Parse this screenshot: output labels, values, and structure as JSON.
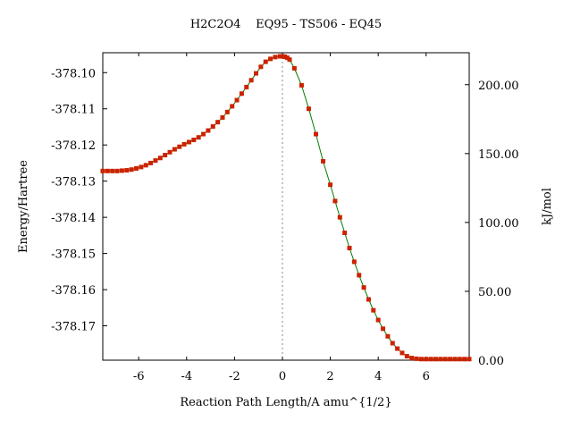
{
  "chart_data": {
    "type": "line",
    "title": "H2C2O4    EQ95 - TS506 - EQ45",
    "xlabel": "Reaction Path Length/A amu^{1/2}",
    "ylabel": "Energy/Hartree",
    "y2label": "kJ/mol",
    "xlim": [
      -7.5,
      7.8
    ],
    "ylim": [
      -378.1795,
      -378.0945
    ],
    "y2lim": [
      0,
      223.2
    ],
    "x_ticks": [
      -6,
      -4,
      -2,
      0,
      2,
      4,
      6
    ],
    "x_tick_labels": [
      "-6",
      "-4",
      "-2",
      "0",
      "2",
      "4",
      "6"
    ],
    "y_ticks": [
      -378.1,
      -378.11,
      -378.12,
      -378.13,
      -378.14,
      -378.15,
      -378.16,
      -378.17
    ],
    "y_tick_labels": [
      "-378.10",
      "-378.11",
      "-378.12",
      "-378.13",
      "-378.14",
      "-378.15",
      "-378.16",
      "-378.17"
    ],
    "y2_ticks": [
      0,
      50,
      100,
      150,
      200
    ],
    "y2_tick_labels": [
      "0.00",
      "50.00",
      "100.00",
      "150.00",
      "200.00"
    ],
    "ts_x": 0,
    "line_color": "#008000",
    "marker_color": "#cc2200",
    "guide_color": "#888888",
    "grid": false,
    "x": [
      -7.5,
      -7.3,
      -7.1,
      -6.9,
      -6.7,
      -6.5,
      -6.3,
      -6.1,
      -5.9,
      -5.7,
      -5.5,
      -5.3,
      -5.1,
      -4.9,
      -4.7,
      -4.5,
      -4.3,
      -4.1,
      -3.9,
      -3.7,
      -3.5,
      -3.3,
      -3.1,
      -2.9,
      -2.7,
      -2.5,
      -2.3,
      -2.1,
      -1.9,
      -1.7,
      -1.5,
      -1.3,
      -1.1,
      -0.9,
      -0.7,
      -0.5,
      -0.3,
      -0.1,
      0.0,
      0.1,
      0.2,
      0.3,
      0.5,
      0.8,
      1.1,
      1.4,
      1.7,
      2.0,
      2.2,
      2.4,
      2.6,
      2.8,
      3.0,
      3.2,
      3.4,
      3.6,
      3.8,
      4.0,
      4.2,
      4.4,
      4.6,
      4.8,
      5.0,
      5.2,
      5.4,
      5.6,
      5.8,
      6.0,
      6.2,
      6.4,
      6.6,
      6.8,
      7.0,
      7.2,
      7.4,
      7.6,
      7.8
    ],
    "y": [
      -378.1272,
      -378.1272,
      -378.1272,
      -378.1272,
      -378.1271,
      -378.127,
      -378.1268,
      -378.1265,
      -378.1261,
      -378.1256,
      -378.125,
      -378.1243,
      -378.1236,
      -378.1228,
      -378.122,
      -378.1212,
      -378.1205,
      -378.1198,
      -378.1192,
      -378.1186,
      -378.1179,
      -378.117,
      -378.116,
      -378.1149,
      -378.1137,
      -378.1124,
      -378.1109,
      -378.1093,
      -378.1076,
      -378.1058,
      -378.104,
      -378.1021,
      -378.1002,
      -378.0984,
      -378.097,
      -378.0962,
      -378.0957,
      -378.0955,
      -378.0955,
      -378.0956,
      -378.0959,
      -378.0964,
      -378.0988,
      -378.1035,
      -378.11,
      -378.117,
      -378.1245,
      -378.131,
      -378.1355,
      -378.14,
      -378.1443,
      -378.1485,
      -378.1523,
      -378.156,
      -378.1594,
      -378.1627,
      -378.1657,
      -378.1684,
      -378.1708,
      -378.1729,
      -378.1748,
      -378.1763,
      -378.1775,
      -378.1784,
      -378.1789,
      -378.1791,
      -378.1792,
      -378.1792,
      -378.1792,
      -378.1792,
      -378.1792,
      -378.1792,
      -378.1792,
      -378.1792,
      -378.1792,
      -378.1792,
      -378.1792
    ]
  }
}
